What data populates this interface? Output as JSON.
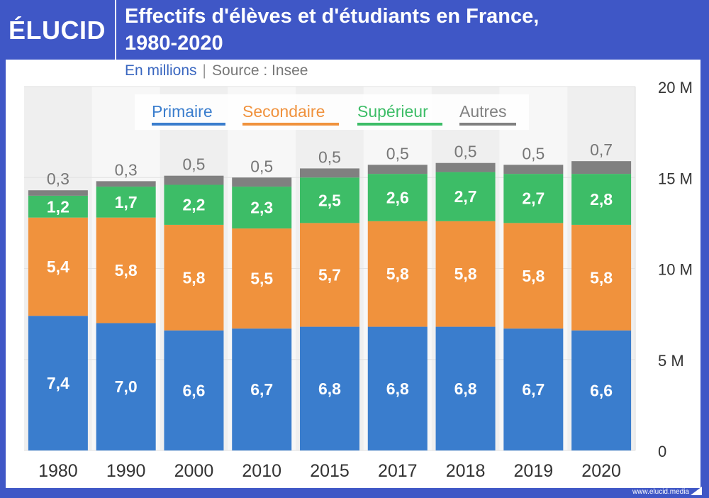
{
  "brand": {
    "logo_text": "ÉLUCID",
    "website": "www.elucid.media"
  },
  "header": {
    "title_line1": "Effectifs d'élèves et d'étudiants en France,",
    "title_line2": "1980-2020",
    "unit_label": "En millions",
    "separator": "|",
    "source_label": "Source : Insee"
  },
  "colors": {
    "background": "#3f57c6",
    "primaire": "#3a7dcd",
    "secondaire": "#f0923d",
    "superieur": "#3dbd67",
    "autres": "#808080"
  },
  "chart_data": {
    "type": "bar",
    "stacked": true,
    "title": "Effectifs d'élèves et d'étudiants en France, 1980-2020",
    "subtitle": "En millions | Source : Insee",
    "xlabel": "",
    "ylabel": "",
    "categories": [
      "1980",
      "1990",
      "2000",
      "2010",
      "2015",
      "2017",
      "2018",
      "2019",
      "2020"
    ],
    "series": [
      {
        "name": "Primaire",
        "color": "#3a7dcd",
        "values": [
          7.4,
          7.0,
          6.6,
          6.7,
          6.8,
          6.8,
          6.8,
          6.7,
          6.6
        ],
        "labels": [
          "7,4",
          "7,0",
          "6,6",
          "6,7",
          "6,8",
          "6,8",
          "6,8",
          "6,7",
          "6,6"
        ]
      },
      {
        "name": "Secondaire",
        "color": "#f0923d",
        "values": [
          5.4,
          5.8,
          5.8,
          5.5,
          5.7,
          5.8,
          5.8,
          5.8,
          5.8
        ],
        "labels": [
          "5,4",
          "5,8",
          "5,8",
          "5,5",
          "5,7",
          "5,8",
          "5,8",
          "5,8",
          "5,8"
        ]
      },
      {
        "name": "Supérieur",
        "color": "#3dbd67",
        "values": [
          1.2,
          1.7,
          2.2,
          2.3,
          2.5,
          2.6,
          2.7,
          2.7,
          2.8
        ],
        "labels": [
          "1,2",
          "1,7",
          "2,2",
          "2,3",
          "2,5",
          "2,6",
          "2,7",
          "2,7",
          "2,8"
        ]
      },
      {
        "name": "Autres",
        "color": "#808080",
        "values": [
          0.3,
          0.3,
          0.5,
          0.5,
          0.5,
          0.5,
          0.5,
          0.5,
          0.7
        ],
        "labels": [
          "0,3",
          "0,3",
          "0,5",
          "0,5",
          "0,5",
          "0,5",
          "0,5",
          "0,5",
          "0,7"
        ]
      }
    ],
    "ylim": [
      0,
      20
    ],
    "yticks": [
      0,
      5,
      10,
      15,
      20
    ],
    "ytick_labels": [
      "0",
      "5 M",
      "10 M",
      "15 M",
      "20 M"
    ],
    "y_axis_position": "right",
    "grid": true,
    "legend_position": "top-center"
  }
}
